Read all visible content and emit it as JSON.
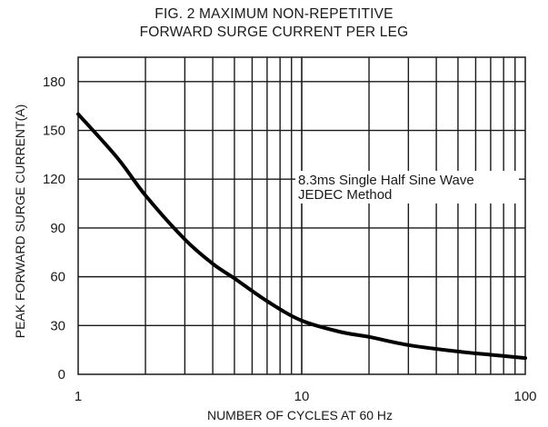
{
  "chart_data": {
    "type": "line",
    "title": "FIG. 2 MAXIMUM NON-REPETITIVE",
    "subtitle": "FORWARD SURGE CURRENT PER LEG",
    "xlabel": "NUMBER OF CYCLES AT 60 Hz",
    "ylabel": "PEAK FORWARD SURGE CURRENT(A)",
    "x_scale": "log",
    "xlim": [
      1,
      100
    ],
    "ylim": [
      0,
      195
    ],
    "x_ticks": [
      1,
      10,
      100
    ],
    "x_tick_labels": [
      "1",
      "10",
      "100"
    ],
    "y_ticks": [
      0,
      30,
      60,
      90,
      120,
      150,
      180
    ],
    "y_tick_labels": [
      "0",
      "30",
      "60",
      "90",
      "120",
      "150",
      "180"
    ],
    "grid": true,
    "annotation": [
      "8.3ms Single Half Sine Wave",
      "JEDEC Method"
    ],
    "series": [
      {
        "x": [
          1,
          1.5,
          2,
          3,
          4,
          5,
          7,
          10,
          15,
          20,
          30,
          50,
          70,
          100
        ],
        "y": [
          160,
          133,
          110,
          83,
          68,
          59,
          45,
          33,
          26,
          23,
          18,
          14,
          12,
          10
        ]
      }
    ]
  }
}
